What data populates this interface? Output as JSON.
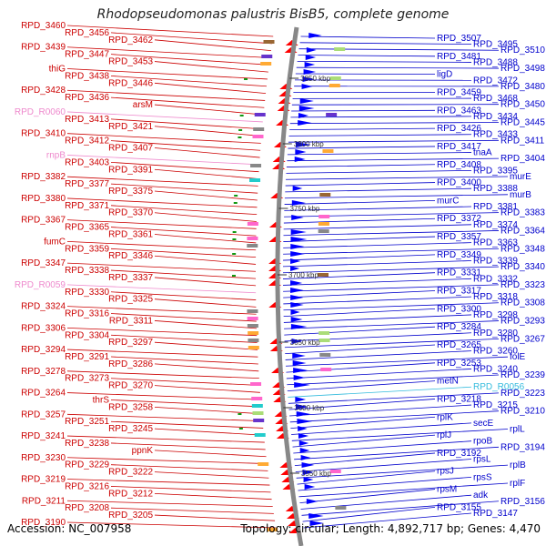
{
  "title": "Rhodopseudomonas palustris BisB5, complete genome",
  "footer": {
    "accession": "Accession: NC_007958",
    "stats": "Topology: circular; Length: 4,892,717 bp; Genes: 4,470"
  },
  "colors": {
    "left_label": "#cc0000",
    "left_label_pink": "#ee88cc",
    "right_label": "#0000cc",
    "right_label_cyan": "#33bbdd",
    "backbone": "#888888",
    "forward_gene": "#ff0000",
    "reverse_gene": "#0000ff",
    "tick_mark": "#119911"
  },
  "ticks": [
    {
      "label": "3850 kbp"
    },
    {
      "label": "3800 kbp"
    },
    {
      "label": "3750 kbp"
    },
    {
      "label": "3700 kbp"
    },
    {
      "label": "3650 kbp"
    },
    {
      "label": "3600 kbp"
    },
    {
      "label": "3550 kbp"
    }
  ],
  "left_labels": [
    {
      "text": "RPD_3460"
    },
    {
      "text": "RPD_3456"
    },
    {
      "text": "RPD_3462"
    },
    {
      "text": "RPD_3439"
    },
    {
      "text": "RPD_3447"
    },
    {
      "text": "RPD_3453"
    },
    {
      "text": "thiG"
    },
    {
      "text": "RPD_3438"
    },
    {
      "text": "RPD_3446"
    },
    {
      "text": "RPD_3428"
    },
    {
      "text": "RPD_3436"
    },
    {
      "text": "arsM"
    },
    {
      "text": "RPD_R0060"
    },
    {
      "text": "RPD_3413"
    },
    {
      "text": "RPD_3421"
    },
    {
      "text": "RPD_3410"
    },
    {
      "text": "RPD_3412"
    },
    {
      "text": "RPD_3407"
    },
    {
      "text": "rnpB"
    },
    {
      "text": "RPD_3403"
    },
    {
      "text": "RPD_3391"
    },
    {
      "text": "RPD_3382"
    },
    {
      "text": "RPD_3377"
    },
    {
      "text": "RPD_3375"
    },
    {
      "text": "RPD_3380"
    },
    {
      "text": "RPD_3371"
    },
    {
      "text": "RPD_3370"
    },
    {
      "text": "RPD_3367"
    },
    {
      "text": "RPD_3365"
    },
    {
      "text": "RPD_3361"
    },
    {
      "text": "fumC"
    },
    {
      "text": "RPD_3359"
    },
    {
      "text": "RPD_3346"
    },
    {
      "text": "RPD_3347"
    },
    {
      "text": "RPD_3338"
    },
    {
      "text": "RPD_3337"
    },
    {
      "text": "RPD_R0059"
    },
    {
      "text": "RPD_3330"
    },
    {
      "text": "RPD_3325"
    },
    {
      "text": "RPD_3324"
    },
    {
      "text": "RPD_3316"
    },
    {
      "text": "RPD_3311"
    },
    {
      "text": "RPD_3306"
    },
    {
      "text": "RPD_3304"
    },
    {
      "text": "RPD_3297"
    },
    {
      "text": "RPD_3294"
    },
    {
      "text": "RPD_3291"
    },
    {
      "text": "RPD_3286"
    },
    {
      "text": "RPD_3278"
    },
    {
      "text": "RPD_3273"
    },
    {
      "text": "RPD_3270"
    },
    {
      "text": "RPD_3264"
    },
    {
      "text": "thrS"
    },
    {
      "text": "RPD_3258"
    },
    {
      "text": "RPD_3257"
    },
    {
      "text": "RPD_3251"
    },
    {
      "text": "RPD_3245"
    },
    {
      "text": "RPD_3241"
    },
    {
      "text": "RPD_3238"
    },
    {
      "text": "ppnK"
    },
    {
      "text": "RPD_3230"
    },
    {
      "text": "RPD_3229"
    },
    {
      "text": "RPD_3222"
    },
    {
      "text": "RPD_3219"
    },
    {
      "text": "RPD_3216"
    },
    {
      "text": "RPD_3212"
    },
    {
      "text": "RPD_3211"
    },
    {
      "text": "RPD_3208"
    },
    {
      "text": "RPD_3205"
    },
    {
      "text": "RPD_3190"
    }
  ],
  "right_labels": [
    {
      "text": "RPD_3507"
    },
    {
      "text": "RPD_3495"
    },
    {
      "text": "RPD_3510"
    },
    {
      "text": "RPD_3481"
    },
    {
      "text": "RPD_3488"
    },
    {
      "text": "RPD_3498"
    },
    {
      "text": "ligD"
    },
    {
      "text": "RPD_3472"
    },
    {
      "text": "RPD_3480"
    },
    {
      "text": "RPD_3459"
    },
    {
      "text": "RPD_3468"
    },
    {
      "text": "RPD_3450"
    },
    {
      "text": "RPD_3463"
    },
    {
      "text": "RPD_3434"
    },
    {
      "text": "RPD_3445"
    },
    {
      "text": "RPD_3426"
    },
    {
      "text": "RPD_3433"
    },
    {
      "text": "RPD_3411"
    },
    {
      "text": "RPD_3417"
    },
    {
      "text": "tnaA"
    },
    {
      "text": "RPD_3404"
    },
    {
      "text": "RPD_3408"
    },
    {
      "text": "RPD_3395"
    },
    {
      "text": "murE"
    },
    {
      "text": "RPD_3400"
    },
    {
      "text": "RPD_3388"
    },
    {
      "text": "murB"
    },
    {
      "text": "murC"
    },
    {
      "text": "RPD_3381"
    },
    {
      "text": "RPD_3383"
    },
    {
      "text": "RPD_3372"
    },
    {
      "text": "RPD_3374"
    },
    {
      "text": "RPD_3364"
    },
    {
      "text": "RPD_3357"
    },
    {
      "text": "RPD_3363"
    },
    {
      "text": "RPD_3348"
    },
    {
      "text": "RPD_3349"
    },
    {
      "text": "RPD_3339"
    },
    {
      "text": "RPD_3340"
    },
    {
      "text": "RPD_3331"
    },
    {
      "text": "RPD_3332"
    },
    {
      "text": "RPD_3323"
    },
    {
      "text": "RPD_3317"
    },
    {
      "text": "RPD_3318"
    },
    {
      "text": "RPD_3308"
    },
    {
      "text": "RPD_3300"
    },
    {
      "text": "RPD_3298"
    },
    {
      "text": "RPD_3293"
    },
    {
      "text": "RPD_3284"
    },
    {
      "text": "RPD_3280"
    },
    {
      "text": "RPD_3267"
    },
    {
      "text": "RPD_3265"
    },
    {
      "text": "RPD_3260"
    },
    {
      "text": "folE"
    },
    {
      "text": "RPD_3253"
    },
    {
      "text": "RPD_3240"
    },
    {
      "text": "RPD_3239"
    },
    {
      "text": "metN"
    },
    {
      "text": "RPD_R0056"
    },
    {
      "text": "RPD_3223"
    },
    {
      "text": "RPD_3218"
    },
    {
      "text": "RPD_3215"
    },
    {
      "text": "RPD_3210"
    },
    {
      "text": "rplK"
    },
    {
      "text": "secE"
    },
    {
      "text": "rplL"
    },
    {
      "text": "rplJ"
    },
    {
      "text": "rpoB"
    },
    {
      "text": "RPD_3194"
    },
    {
      "text": "RPD_3192"
    },
    {
      "text": "rpsL"
    },
    {
      "text": "rplB"
    },
    {
      "text": "rpsJ"
    },
    {
      "text": "rpsS"
    },
    {
      "text": "rplF"
    },
    {
      "text": "rpsM"
    },
    {
      "text": "adk"
    },
    {
      "text": "RPD_3156"
    },
    {
      "text": "RPD_3155"
    },
    {
      "text": "RPD_3147"
    }
  ]
}
